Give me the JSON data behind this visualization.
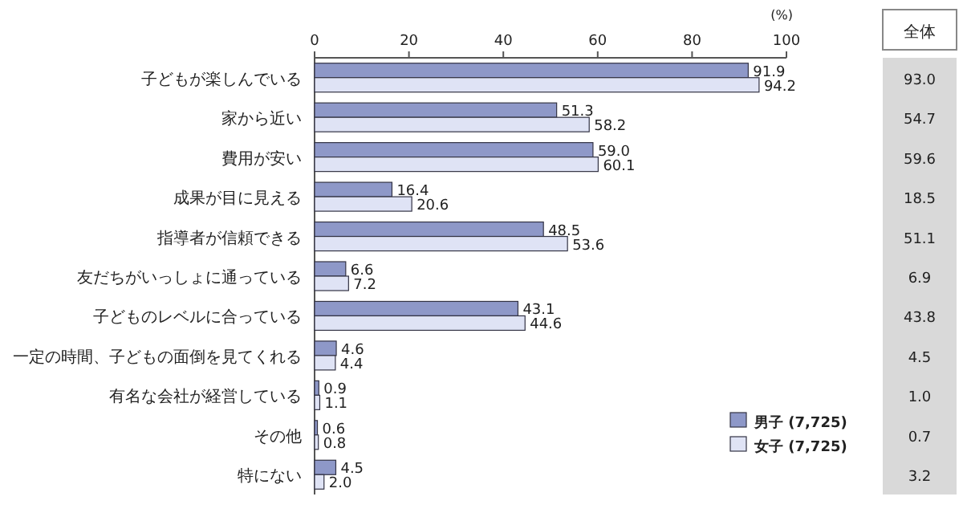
{
  "chart_data": [
    {
      "type": "bar",
      "orientation": "horizontal",
      "xlabel": "(%)",
      "categories": [
        "子どもが楽しんでいる",
        "家から近い",
        "費用が安い",
        "成果が目に見える",
        "指導者が信頼できる",
        "友だちがいっしょに通っている",
        "子どものレベルに合っている",
        "一定の時間、子どもの面倒を見てくれる",
        "有名な会社が経営している",
        "その他",
        "特にない"
      ],
      "series": [
        {
          "name": "男子 (7,725)",
          "color": "#8e98c8",
          "values": [
            91.9,
            51.3,
            59.0,
            16.4,
            48.5,
            6.6,
            43.1,
            4.6,
            0.9,
            0.6,
            4.5
          ],
          "value_labels": [
            "91.9",
            "51.3",
            "59.0",
            "16.4",
            "48.5",
            "6.6",
            "43.1",
            "4.6",
            "0.9",
            "0.6",
            "4.5"
          ]
        },
        {
          "name": "女子 (7,725)",
          "color": "#dfe3f5",
          "values": [
            94.2,
            58.2,
            60.1,
            20.6,
            53.6,
            7.2,
            44.6,
            4.4,
            1.1,
            0.8,
            2.0
          ],
          "value_labels": [
            "94.2",
            "58.2",
            "60.1",
            "20.6",
            "53.6",
            "7.2",
            "44.6",
            "4.4",
            "1.1",
            "0.8",
            "2.0"
          ]
        }
      ],
      "xlim": [
        0,
        100
      ],
      "xticks": [
        0,
        20,
        40,
        60,
        80,
        100
      ],
      "legend": "bottom right",
      "grid": false
    },
    {
      "type": "other",
      "title": "全体",
      "annotations": [
        "93.0",
        "54.7",
        "59.6",
        "18.5",
        "51.1",
        "6.9",
        "43.8",
        "4.5",
        "1.0",
        "0.7",
        "3.2"
      ]
    }
  ]
}
